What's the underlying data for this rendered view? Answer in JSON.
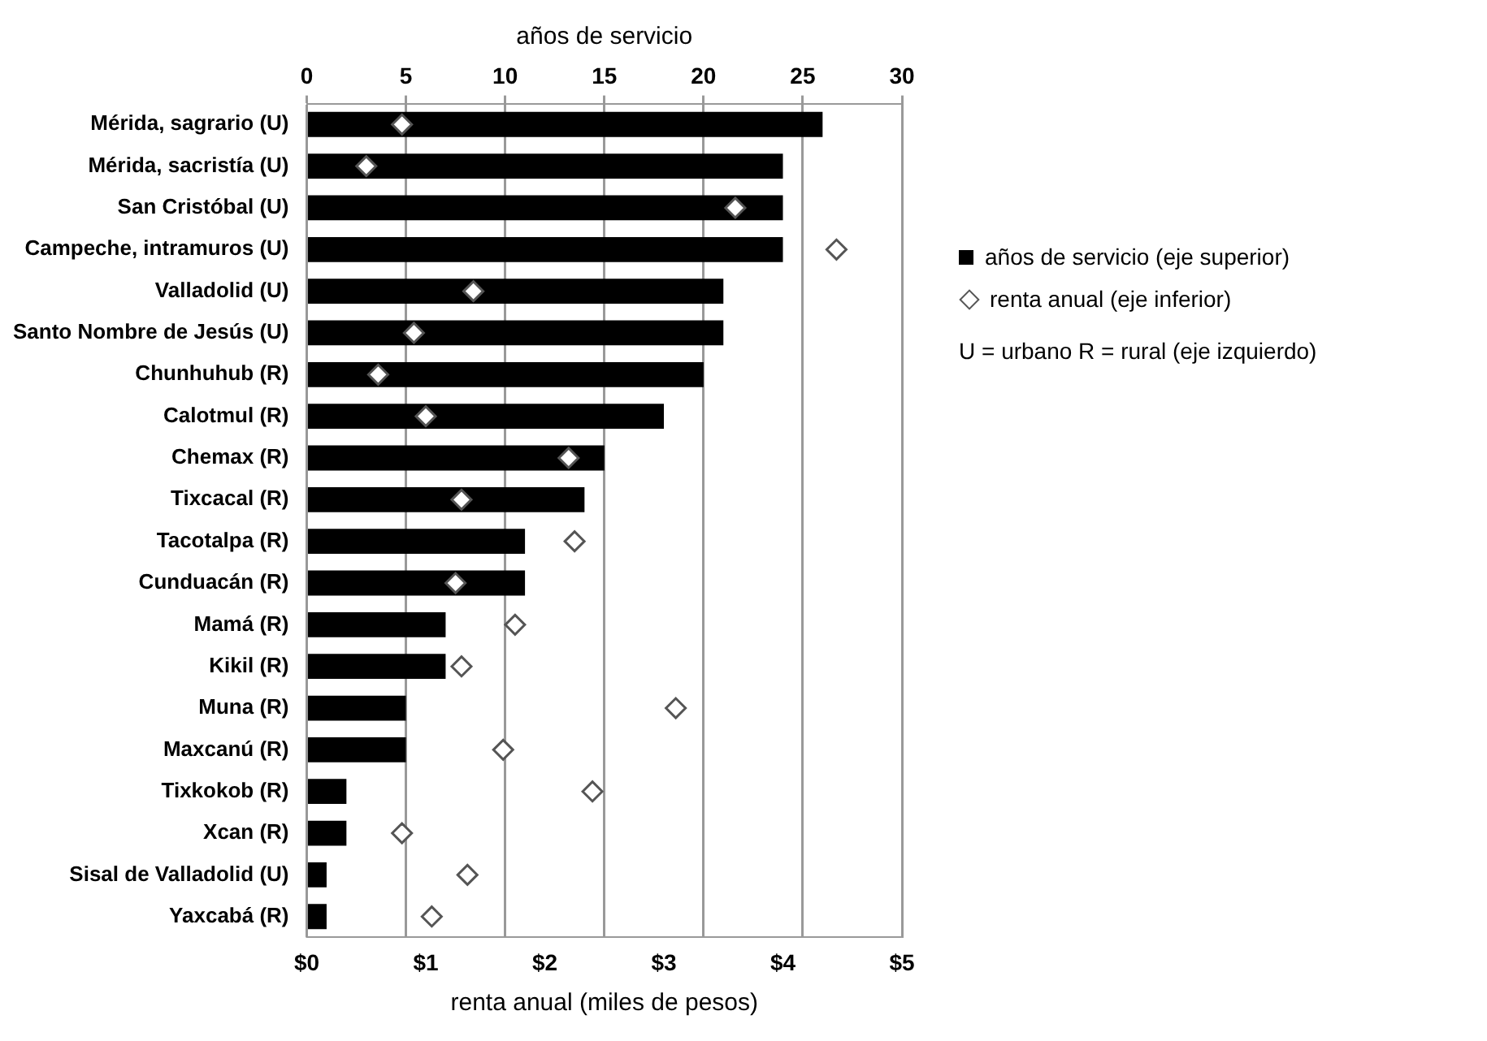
{
  "chart_data": {
    "type": "bar",
    "orientation": "horizontal",
    "x2label": "años de servicio",
    "xlabel": "renta anual (miles de pesos)",
    "categories": [
      "Mérida, sagrario (U)",
      "Mérida, sacristía (U)",
      "San Cristóbal (U)",
      "Campeche, intramuros (U)",
      "Valladolid (U)",
      "Santo Nombre de Jesús (U)",
      "Chunhuhub (R)",
      "Calotmul (R)",
      "Chemax (R)",
      "Tixcacal (R)",
      "Tacotalpa (R)",
      "Cunduacán (R)",
      "Mamá (R)",
      "Kikil (R)",
      "Muna (R)",
      "Maxcanú (R)",
      "Tixkokob (R)",
      "Xcan (R)",
      "Sisal de Valladolid (U)",
      "Yaxcabá (R)"
    ],
    "series": [
      {
        "name": "años de servicio (eje superior)",
        "type": "bar",
        "axis": "x2",
        "color": "#000000",
        "values": [
          26,
          24,
          24,
          24,
          21,
          21,
          20,
          18,
          15,
          14,
          11,
          11,
          7,
          7,
          5,
          5,
          2,
          2,
          1,
          1
        ]
      },
      {
        "name": "renta anual (eje inferior)",
        "type": "scatter",
        "marker": "diamond",
        "color": "#ffffff",
        "values": [
          0.8,
          0.5,
          3.6,
          4.45,
          1.4,
          0.9,
          0.6,
          1.0,
          2.2,
          1.3,
          2.25,
          1.25,
          1.75,
          1.3,
          3.1,
          1.65,
          2.4,
          0.8,
          1.35,
          1.05
        ]
      }
    ],
    "x2lim": [
      0,
      30
    ],
    "x2ticks": [
      0,
      5,
      10,
      15,
      20,
      25,
      30
    ],
    "xlim": [
      0,
      5
    ],
    "xticks": [
      {
        "value": 0,
        "label": "$0"
      },
      {
        "value": 1,
        "label": "$1"
      },
      {
        "value": 2,
        "label": "$2"
      },
      {
        "value": 3,
        "label": "$3"
      },
      {
        "value": 4,
        "label": "$4"
      },
      {
        "value": 5,
        "label": "$5"
      }
    ],
    "grid": "x",
    "legend": "right",
    "annotations": [
      "U = urbano R = rural (eje izquierdo)"
    ]
  }
}
